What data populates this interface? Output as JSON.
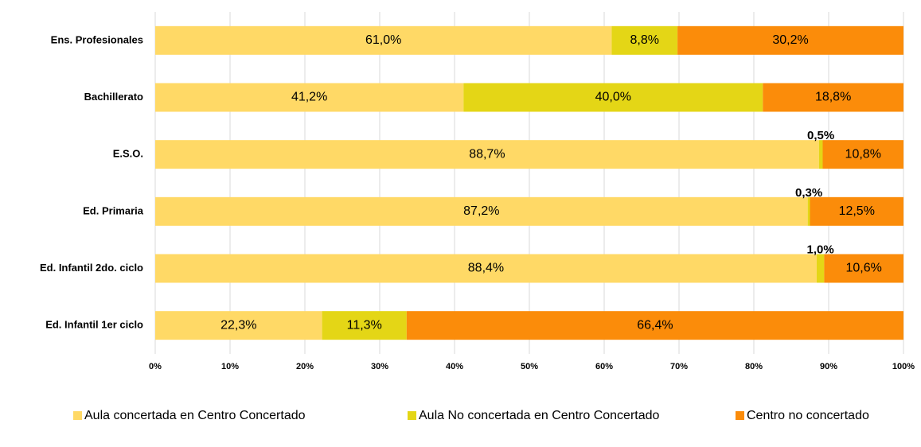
{
  "chart_data": {
    "type": "stacked-bar-horizontal",
    "categories": [
      "Ens. Profesionales",
      "Bachillerato",
      "E.S.O.",
      "Ed. Primaria",
      "Ed. Infantil 2do. ciclo",
      "Ed. Infantil 1er ciclo"
    ],
    "series": [
      {
        "name": "Aula concertada en Centro Concertado",
        "color": "#FFD966",
        "values": [
          61.0,
          41.2,
          88.7,
          87.2,
          88.4,
          22.3
        ],
        "value_labels": [
          "61,0%",
          "41,2%",
          "88,7%",
          "87,2%",
          "88,4%",
          "22,3%"
        ]
      },
      {
        "name": "Aula No concertada en Centro Concertado",
        "color": "#E4D616",
        "values": [
          8.8,
          40.0,
          0.5,
          0.3,
          1.0,
          11.3
        ],
        "value_labels": [
          "8,8%",
          "40,0%",
          "0,5%",
          "0,3%",
          "1,0%",
          "11,3%"
        ]
      },
      {
        "name": "Centro no concertado",
        "color": "#FB8C0A",
        "values": [
          30.2,
          18.8,
          10.8,
          12.5,
          10.6,
          66.4
        ],
        "value_labels": [
          "30,2%",
          "18,8%",
          "10,8%",
          "12,5%",
          "10,6%",
          "66,4%"
        ]
      }
    ],
    "xlim": [
      0,
      100
    ],
    "xticks": [
      {
        "value": 0,
        "label": "0%"
      },
      {
        "value": 10,
        "label": "10%"
      },
      {
        "value": 20,
        "label": "20%"
      },
      {
        "value": 30,
        "label": "30%"
      },
      {
        "value": 40,
        "label": "40%"
      },
      {
        "value": 50,
        "label": "50%"
      },
      {
        "value": 60,
        "label": "60%"
      },
      {
        "value": 70,
        "label": "70%"
      },
      {
        "value": 80,
        "label": "80%"
      },
      {
        "value": 90,
        "label": "90%"
      },
      {
        "value": 100,
        "label": "100%"
      }
    ],
    "grid": true,
    "legend": "bottom"
  }
}
